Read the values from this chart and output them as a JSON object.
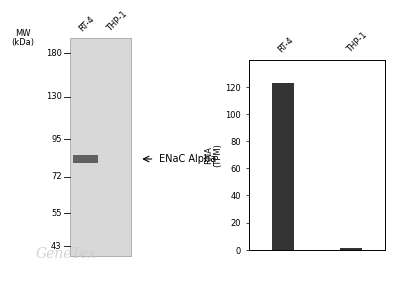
{
  "wb_panel": {
    "lane_labels": [
      "RT-4",
      "THP-1"
    ],
    "mw_labels": [
      180,
      130,
      95,
      72,
      55,
      43
    ],
    "band_mw": 82,
    "arrow_label": "ENaC Alpha",
    "arrow_mw": 82,
    "y_label": "MW\n(kDa)",
    "gel_color": "#d0d0d0",
    "band_color": "#606060",
    "bg_color": "#d8d8d8"
  },
  "bar_panel": {
    "categories": [
      "RT-4",
      "THP-1"
    ],
    "values": [
      123,
      1.0
    ],
    "bar_color": "#333333",
    "ylabel": "RNA\n(TPM)",
    "ylim": [
      0,
      140
    ],
    "yticks": [
      0,
      20,
      40,
      60,
      80,
      100,
      120
    ]
  },
  "watermark": "GeneTex",
  "watermark_color": "#cccccc",
  "background_color": "#ffffff",
  "mw_min_log": 3.76,
  "mw_max_log": 5.19
}
